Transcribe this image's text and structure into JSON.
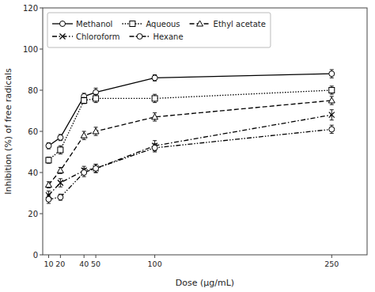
{
  "chart_data": {
    "type": "line",
    "x": [
      10,
      20,
      40,
      50,
      100,
      250
    ],
    "xlabel": "Dose (μg/mL)",
    "ylabel": "Inhibition (%) of free radicals",
    "xlim": [
      5,
      280
    ],
    "xticks": [
      10,
      20,
      40,
      50,
      100,
      250
    ],
    "ylim": [
      0,
      120
    ],
    "yticks": [
      0,
      20,
      40,
      60,
      80,
      100,
      120
    ],
    "grid": false,
    "legend": "upper left",
    "series": [
      {
        "name": "Methanol",
        "color": "#000000",
        "marker": "circle",
        "line_style": "solid",
        "values": [
          53,
          57,
          77,
          79,
          86,
          88
        ],
        "errors": [
          1.5,
          1.5,
          1.5,
          2.0,
          1.5,
          2.0
        ]
      },
      {
        "name": "Aqueous",
        "color": "#000000",
        "marker": "square",
        "line_style": "dotted",
        "values": [
          46,
          51,
          75,
          76,
          76,
          80
        ],
        "errors": [
          1.5,
          2.0,
          1.5,
          2.0,
          2.0,
          2.0
        ]
      },
      {
        "name": "Ethyl acetate",
        "color": "#000000",
        "marker": "triangle",
        "line_style": "dashed",
        "values": [
          34,
          41,
          58,
          60,
          67,
          75
        ],
        "errors": [
          1.5,
          1.5,
          2.0,
          2.0,
          2.0,
          2.0
        ]
      },
      {
        "name": "Chloroform",
        "color": "#000000",
        "marker": "x",
        "line_style": "dashdot",
        "values": [
          29,
          35,
          41,
          42,
          53,
          68
        ],
        "errors": [
          2.0,
          2.0,
          2.0,
          2.0,
          2.5,
          2.5
        ]
      },
      {
        "name": "Hexane",
        "color": "#000000",
        "marker": "circle",
        "line_style": "dashdotdot",
        "values": [
          27,
          28,
          40,
          42,
          52,
          61
        ],
        "errors": [
          2.0,
          1.5,
          2.0,
          2.0,
          2.0,
          2.0
        ]
      }
    ]
  }
}
